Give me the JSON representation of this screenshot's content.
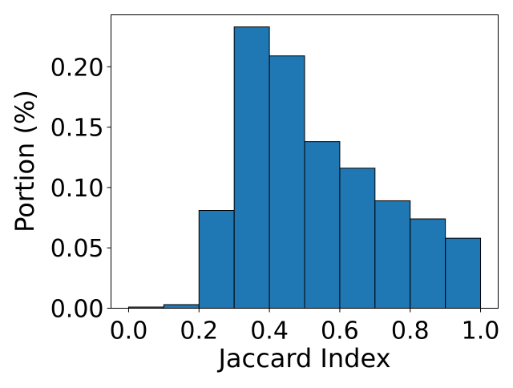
{
  "chart_data": {
    "type": "bar",
    "subtype": "histogram",
    "title": "",
    "xlabel": "Jaccard Index",
    "ylabel": "Portion (%)",
    "xlim": [
      -0.05,
      1.05
    ],
    "ylim": [
      0.0,
      0.243
    ],
    "bin_edges": [
      0.0,
      0.1,
      0.2,
      0.3,
      0.4,
      0.5,
      0.6,
      0.7,
      0.8,
      0.9,
      1.0
    ],
    "values": [
      0.001,
      0.003,
      0.081,
      0.233,
      0.209,
      0.138,
      0.116,
      0.089,
      0.074,
      0.058
    ],
    "x_ticks": [
      0.0,
      0.2,
      0.4,
      0.6,
      0.8,
      1.0
    ],
    "x_tick_labels": [
      "0.0",
      "0.2",
      "0.4",
      "0.6",
      "0.8",
      "1.0"
    ],
    "y_ticks": [
      0.0,
      0.05,
      0.1,
      0.15,
      0.2
    ],
    "y_tick_labels": [
      "0.00",
      "0.05",
      "0.10",
      "0.15",
      "0.20"
    ],
    "bar_color": "#1f77b4",
    "bar_edge_color": "#000000",
    "grid": false,
    "legend": "none"
  }
}
